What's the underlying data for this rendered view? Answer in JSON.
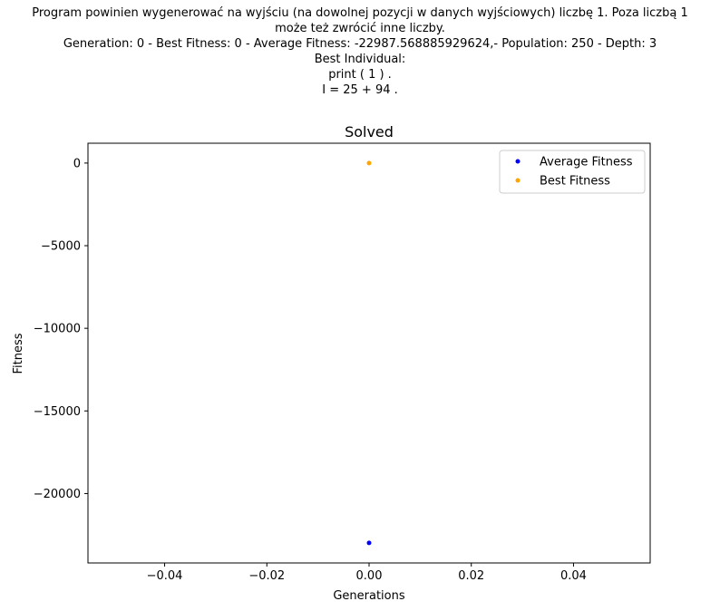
{
  "figure": {
    "suptitle_lines": [
      "Program powinien wygenerować na wyjściu (na dowolnej pozycji w danych wyjściowych) liczbę 1. Poza liczbą 1",
      "może też zwrócić inne liczby.",
      "Generation: 0 - Best Fitness: 0 - Average Fitness: -22987.568885929624,- Population: 250 - Depth: 3",
      "Best Individual:",
      "print ( 1 ) .",
      "I = 25 + 94 ."
    ]
  },
  "chart_data": {
    "type": "scatter",
    "title": "Solved",
    "xlabel": "Generations",
    "ylabel": "Fitness",
    "xlim": [
      -0.055,
      0.055
    ],
    "ylim": [
      -24200,
      1200
    ],
    "xticks": [
      -0.04,
      -0.02,
      0.0,
      0.02,
      0.04
    ],
    "xtick_labels": [
      "−0.04",
      "−0.02",
      "0.00",
      "0.02",
      "0.04"
    ],
    "yticks": [
      0,
      -5000,
      -10000,
      -15000,
      -20000
    ],
    "ytick_labels": [
      "0",
      "−5000",
      "−10000",
      "−15000",
      "−20000"
    ],
    "grid": false,
    "legend_position": "top-right",
    "series": [
      {
        "name": "Average Fitness",
        "color": "#0000ff",
        "x": [
          0
        ],
        "y": [
          -22987.568885929624
        ]
      },
      {
        "name": "Best Fitness",
        "color": "#ffa500",
        "x": [
          0
        ],
        "y": [
          0
        ]
      }
    ]
  }
}
